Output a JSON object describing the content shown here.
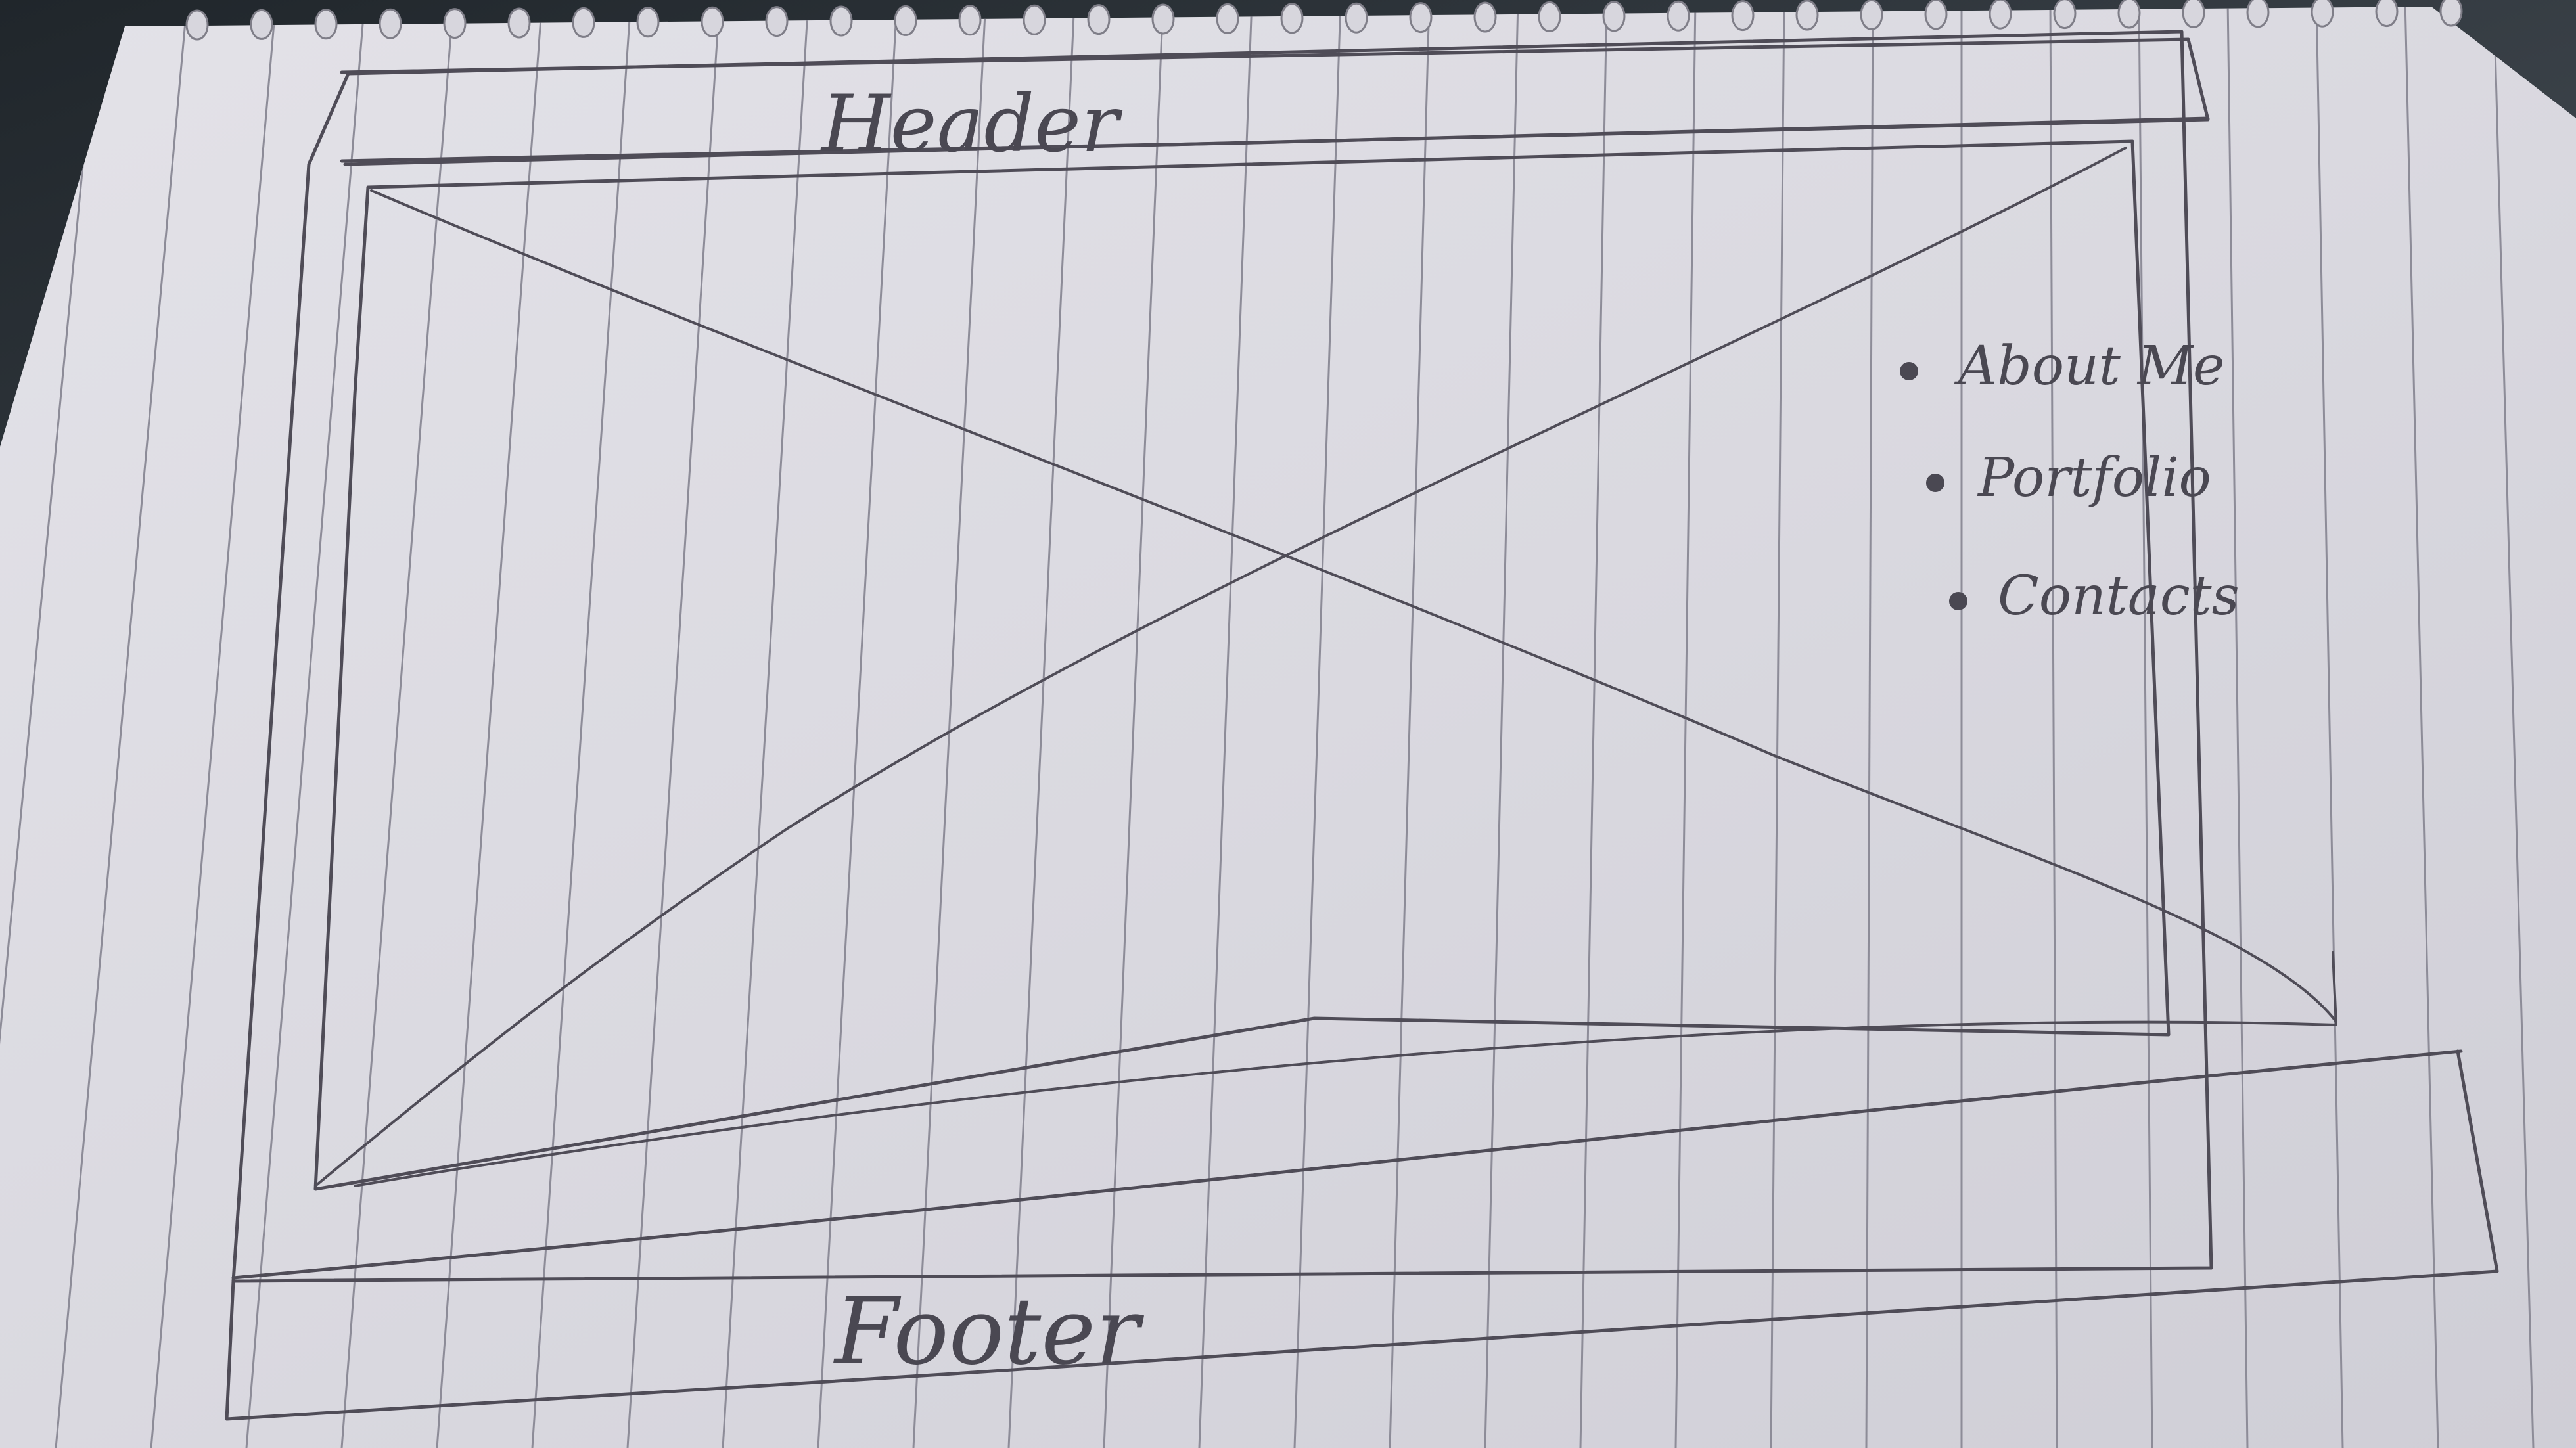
{
  "header": {
    "label": "Header"
  },
  "main": {
    "image_placeholder": "image-placeholder-x",
    "nav": {
      "items": [
        {
          "label": "About Me"
        },
        {
          "label": "Portfolio"
        },
        {
          "label": "Contacts"
        }
      ]
    }
  },
  "footer": {
    "label": "Footer"
  },
  "colors": {
    "paper": "#dcdbe2",
    "pencil": "#4f4c57",
    "rules": "#8d8c98",
    "desk": "#2a2f34"
  }
}
